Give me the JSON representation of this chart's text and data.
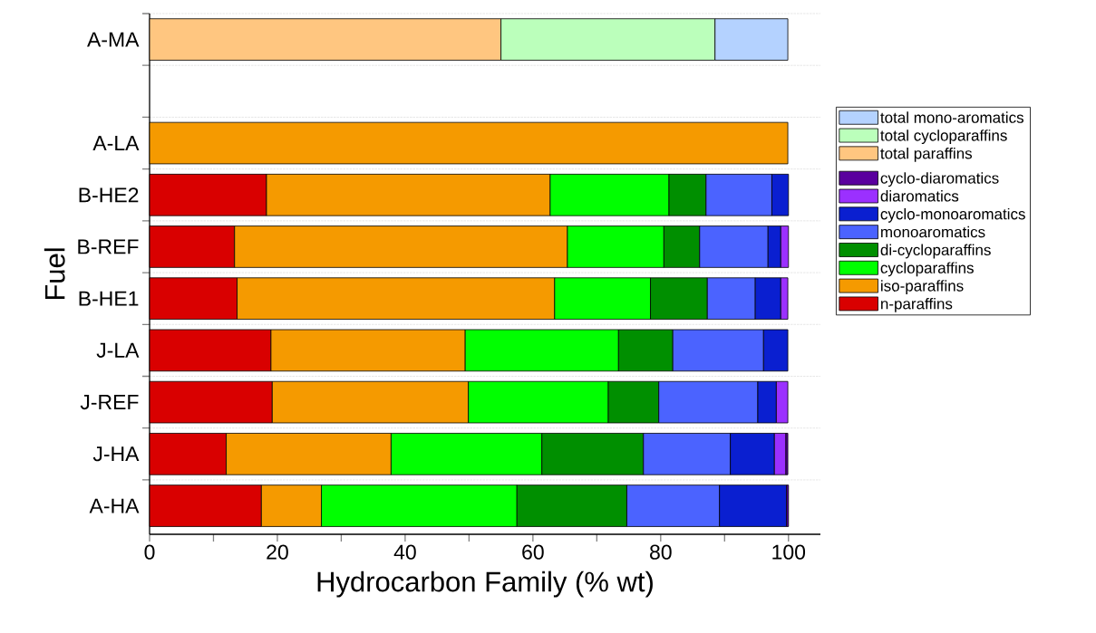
{
  "chart_data": {
    "type": "bar",
    "orientation": "horizontal",
    "stacked": true,
    "xlabel": "Hydrocarbon Family (% wt)",
    "ylabel": "Fuel",
    "categories": [
      "A-MA",
      null,
      "A-LA",
      "B-HE2",
      "B-REF",
      "B-HE1",
      "J-LA",
      "J-REF",
      "J-HA",
      "A-HA"
    ],
    "series": [
      {
        "name": "n-paraffins",
        "color": "#d90000",
        "values": [
          null,
          null,
          null,
          18.3,
          13.3,
          13.7,
          19.0,
          19.2,
          12.0,
          17.5
        ]
      },
      {
        "name": "iso-paraffins",
        "color": "#f59a00",
        "values": [
          null,
          null,
          99.9,
          44.4,
          52.1,
          49.7,
          30.4,
          30.7,
          25.8,
          9.4
        ]
      },
      {
        "name": "cycloparaffins",
        "color": "#00ff00",
        "values": [
          null,
          null,
          null,
          18.6,
          15.1,
          15.0,
          24.0,
          21.9,
          23.6,
          30.6
        ]
      },
      {
        "name": "di-cycloparaffins",
        "color": "#008f00",
        "values": [
          null,
          null,
          null,
          5.8,
          5.6,
          8.9,
          8.5,
          7.9,
          15.9,
          17.2
        ]
      },
      {
        "name": "monoaromatics",
        "color": "#4b63ff",
        "values": [
          null,
          null,
          null,
          10.3,
          10.7,
          7.5,
          14.2,
          15.5,
          13.6,
          14.5
        ]
      },
      {
        "name": "cyclo-monoaromatics",
        "color": "#0a1fd0",
        "values": [
          null,
          null,
          null,
          2.6,
          2.0,
          4.0,
          3.8,
          2.9,
          6.9,
          10.5
        ]
      },
      {
        "name": "diaromatics",
        "color": "#9b30ff",
        "values": [
          null,
          null,
          null,
          null,
          1.2,
          1.1,
          null,
          1.8,
          1.8,
          null
        ]
      },
      {
        "name": "cyclo-diaromatics",
        "color": "#5a009e",
        "values": [
          null,
          null,
          null,
          null,
          null,
          null,
          null,
          null,
          0.3,
          0.3
        ]
      },
      {
        "name": "total paraffins",
        "color": "#ffc680",
        "values": [
          55.0,
          null,
          null,
          null,
          null,
          null,
          null,
          null,
          null,
          null
        ]
      },
      {
        "name": "total cycloparaffins",
        "color": "#bbffbb",
        "values": [
          33.5,
          null,
          null,
          null,
          null,
          null,
          null,
          null,
          null,
          null
        ]
      },
      {
        "name": "total mono-aromatics",
        "color": "#b4d2ff",
        "values": [
          11.4,
          null,
          null,
          null,
          null,
          null,
          null,
          null,
          null,
          null
        ]
      }
    ],
    "xlim": [
      0,
      105
    ],
    "xticks": [
      0,
      {
        "value": 10,
        "label": null
      },
      20,
      {
        "value": 30,
        "label": null
      },
      40,
      {
        "value": 50,
        "label": null
      },
      60,
      {
        "value": 70,
        "label": null
      },
      80,
      {
        "value": 90,
        "label": null
      },
      100
    ],
    "grid": "y",
    "legend": "right"
  }
}
